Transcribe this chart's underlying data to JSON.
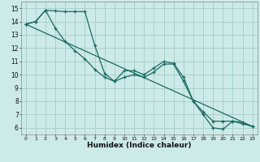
{
  "title": "",
  "xlabel": "Humidex (Indice chaleur)",
  "bg_color": "#cceae8",
  "grid_color": "#aacfcc",
  "line_color": "#1a6b60",
  "xlim": [
    -0.5,
    23.5
  ],
  "ylim": [
    5.5,
    15.5
  ],
  "xticks": [
    0,
    1,
    2,
    3,
    4,
    5,
    6,
    7,
    8,
    9,
    10,
    11,
    12,
    13,
    14,
    15,
    16,
    17,
    18,
    19,
    20,
    21,
    22,
    23
  ],
  "yticks": [
    6,
    7,
    8,
    9,
    10,
    11,
    12,
    13,
    14,
    15
  ],
  "line1_x": [
    0,
    1,
    2,
    3,
    4,
    5,
    6,
    7,
    8,
    9,
    10,
    11,
    12,
    13,
    14,
    15,
    16,
    17,
    18,
    19,
    20,
    21,
    22,
    23
  ],
  "line1_y": [
    13.8,
    14.0,
    14.85,
    14.8,
    14.75,
    14.75,
    14.75,
    12.2,
    10.1,
    9.5,
    10.3,
    10.3,
    10.0,
    10.5,
    11.0,
    10.85,
    9.8,
    8.0,
    7.0,
    6.0,
    5.9,
    6.5,
    6.4,
    6.1
  ],
  "line2_x": [
    0,
    1,
    2,
    3,
    4,
    5,
    6,
    7,
    8,
    9,
    10,
    11,
    12,
    13,
    14,
    15,
    16,
    17,
    18,
    19,
    20,
    21,
    22,
    23
  ],
  "line2_y": [
    13.8,
    14.0,
    14.85,
    13.5,
    12.5,
    11.8,
    11.2,
    10.4,
    9.8,
    9.5,
    9.8,
    10.0,
    9.8,
    10.2,
    10.8,
    10.8,
    9.5,
    8.0,
    7.2,
    6.5,
    6.5,
    6.5,
    6.3,
    6.1
  ],
  "line3_x": [
    0,
    23
  ],
  "line3_y": [
    13.8,
    6.1
  ]
}
